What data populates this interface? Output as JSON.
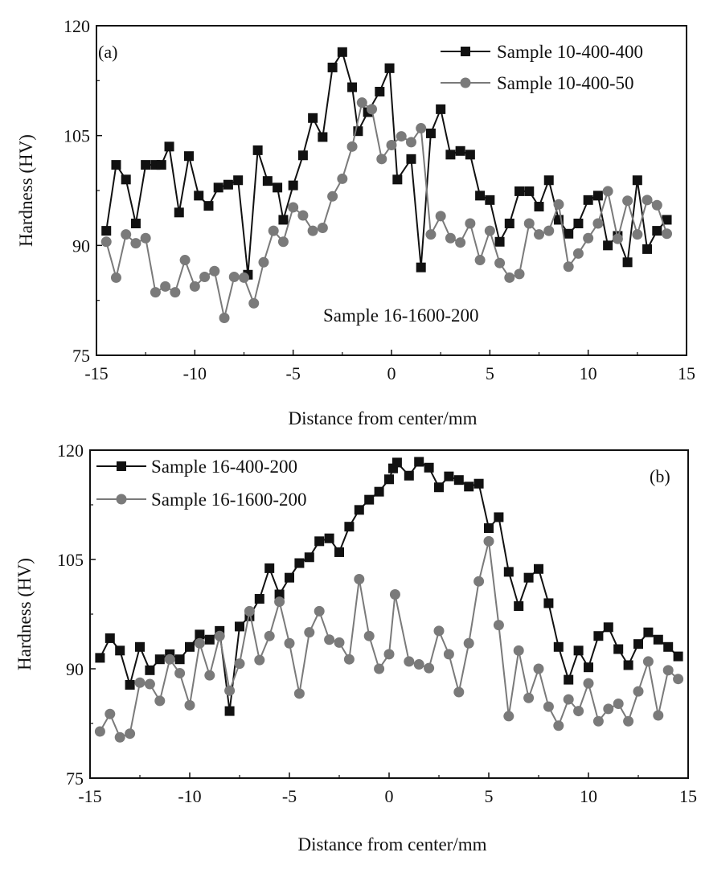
{
  "chart_data": [
    {
      "type": "line",
      "panel_label": "(a)",
      "xlabel": "Distance from center/mm",
      "ylabel": "Hardness (HV)",
      "xlim": [
        -15,
        15
      ],
      "ylim": [
        75,
        120
      ],
      "xticks": [
        -15,
        -10,
        -5,
        0,
        5,
        10,
        15
      ],
      "yticks": [
        75,
        90,
        105,
        120
      ],
      "grid": false,
      "legend_position": "top-right",
      "annotation": "Sample 16-1600-200",
      "series": [
        {
          "name": "Sample 10-400-400",
          "color": "#111111",
          "marker": "square",
          "points": [
            [
              -14.5,
              92
            ],
            [
              -14,
              101
            ],
            [
              -13.5,
              99
            ],
            [
              -13,
              93
            ],
            [
              -12.5,
              101
            ],
            [
              -12,
              101
            ],
            [
              -11.7,
              101
            ],
            [
              -11.3,
              103.5
            ],
            [
              -10.8,
              94.5
            ],
            [
              -10.3,
              102.2
            ],
            [
              -9.8,
              96.8
            ],
            [
              -9.3,
              95.4
            ],
            [
              -8.8,
              97.9
            ],
            [
              -8.3,
              98.3
            ],
            [
              -7.8,
              98.9
            ],
            [
              -7.3,
              86
            ],
            [
              -6.8,
              103
            ],
            [
              -6.3,
              98.8
            ],
            [
              -5.8,
              97.9
            ],
            [
              -5.5,
              93.5
            ],
            [
              -5,
              98.2
            ],
            [
              -4.5,
              102.3
            ],
            [
              -4,
              107.4
            ],
            [
              -3.5,
              104.8
            ],
            [
              -3,
              114.3
            ],
            [
              -2.5,
              116.4
            ],
            [
              -2,
              111.6
            ],
            [
              -1.7,
              105.6
            ],
            [
              -1.2,
              108.2
            ],
            [
              -0.6,
              111
            ],
            [
              -0.1,
              114.2
            ],
            [
              0.3,
              99
            ],
            [
              1,
              101.8
            ],
            [
              1.5,
              87
            ],
            [
              2,
              105.3
            ],
            [
              2.5,
              108.6
            ],
            [
              3,
              102.4
            ],
            [
              3.5,
              102.9
            ],
            [
              4,
              102.4
            ],
            [
              4.5,
              96.8
            ],
            [
              5,
              96.2
            ],
            [
              5.5,
              90.5
            ],
            [
              6,
              93
            ],
            [
              6.5,
              97.4
            ],
            [
              7,
              97.4
            ],
            [
              7.5,
              95.3
            ],
            [
              8,
              98.9
            ],
            [
              8.5,
              93.5
            ],
            [
              9,
              91.6
            ],
            [
              9.5,
              93
            ],
            [
              10,
              96.2
            ],
            [
              10.5,
              96.8
            ],
            [
              11,
              90
            ],
            [
              11.5,
              91.3
            ],
            [
              12,
              87.7
            ],
            [
              12.5,
              98.9
            ],
            [
              13,
              89.5
            ],
            [
              13.5,
              92
            ],
            [
              14,
              93.5
            ]
          ]
        },
        {
          "name": "Sample 10-400-50",
          "color": "#7a7a7a",
          "marker": "circle",
          "points": [
            [
              -14.5,
              90.5
            ],
            [
              -14,
              85.6
            ],
            [
              -13.5,
              91.5
            ],
            [
              -13,
              90.3
            ],
            [
              -12.5,
              91
            ],
            [
              -12,
              83.6
            ],
            [
              -11.5,
              84.4
            ],
            [
              -11,
              83.6
            ],
            [
              -10.5,
              88
            ],
            [
              -10,
              84.4
            ],
            [
              -9.5,
              85.7
            ],
            [
              -9,
              86.5
            ],
            [
              -8.5,
              80.1
            ],
            [
              -8,
              85.7
            ],
            [
              -7.5,
              85.6
            ],
            [
              -7,
              82.1
            ],
            [
              -6.5,
              87.7
            ],
            [
              -6,
              92
            ],
            [
              -5.5,
              90.5
            ],
            [
              -5,
              95.2
            ],
            [
              -4.5,
              94.1
            ],
            [
              -4,
              92
            ],
            [
              -3.5,
              92.4
            ],
            [
              -3,
              96.7
            ],
            [
              -2.5,
              99.1
            ],
            [
              -2,
              103.5
            ],
            [
              -1.5,
              109.5
            ],
            [
              -1,
              108.6
            ],
            [
              -0.5,
              101.8
            ],
            [
              0,
              103.7
            ],
            [
              0.5,
              104.9
            ],
            [
              1,
              104.1
            ],
            [
              1.5,
              106
            ],
            [
              2,
              91.5
            ],
            [
              2.5,
              94
            ],
            [
              3,
              91
            ],
            [
              3.5,
              90.4
            ],
            [
              4,
              93
            ],
            [
              4.5,
              88
            ],
            [
              5,
              92
            ],
            [
              5.5,
              87.6
            ],
            [
              6,
              85.6
            ],
            [
              6.5,
              86.1
            ],
            [
              7,
              93
            ],
            [
              7.5,
              91.5
            ],
            [
              8,
              92
            ],
            [
              8.5,
              95.6
            ],
            [
              9,
              87.1
            ],
            [
              9.5,
              88.9
            ],
            [
              10,
              91
            ],
            [
              10.5,
              93
            ],
            [
              11,
              97.4
            ],
            [
              11.5,
              90.9
            ],
            [
              12,
              96.1
            ],
            [
              12.5,
              91.5
            ],
            [
              13,
              96.2
            ],
            [
              13.5,
              95.5
            ],
            [
              14,
              91.6
            ]
          ]
        }
      ]
    },
    {
      "type": "line",
      "panel_label": "(b)",
      "xlabel": "Distance from center/mm",
      "ylabel": "Hardness (HV)",
      "xlim": [
        -15,
        15
      ],
      "ylim": [
        75,
        120
      ],
      "xticks": [
        -15,
        -10,
        -5,
        0,
        5,
        10,
        15
      ],
      "yticks": [
        75,
        90,
        105,
        120
      ],
      "grid": false,
      "legend_position": "top-left",
      "series": [
        {
          "name": "Sample 16-400-200",
          "color": "#111111",
          "marker": "square",
          "points": [
            [
              -14.5,
              91.5
            ],
            [
              -14,
              94.2
            ],
            [
              -13.5,
              92.5
            ],
            [
              -13,
              87.8
            ],
            [
              -12.5,
              93
            ],
            [
              -12,
              89.8
            ],
            [
              -11.5,
              91.3
            ],
            [
              -11,
              92
            ],
            [
              -10.5,
              91.3
            ],
            [
              -10,
              93
            ],
            [
              -9.5,
              94.7
            ],
            [
              -9,
              94
            ],
            [
              -8.5,
              95.2
            ],
            [
              -8,
              84.2
            ],
            [
              -7.5,
              95.8
            ],
            [
              -7,
              97.2
            ],
            [
              -6.5,
              99.6
            ],
            [
              -6,
              103.8
            ],
            [
              -5.5,
              100.2
            ],
            [
              -5,
              102.5
            ],
            [
              -4.5,
              104.5
            ],
            [
              -4,
              105.3
            ],
            [
              -3.5,
              107.5
            ],
            [
              -3,
              107.9
            ],
            [
              -2.5,
              106
            ],
            [
              -2,
              109.5
            ],
            [
              -1.5,
              111.8
            ],
            [
              -1,
              113.2
            ],
            [
              -0.5,
              114.3
            ],
            [
              0,
              116
            ],
            [
              0.2,
              117.5
            ],
            [
              0.4,
              118.3
            ],
            [
              1,
              116.5
            ],
            [
              1.5,
              118.4
            ],
            [
              2,
              117.6
            ],
            [
              2.5,
              114.9
            ],
            [
              3,
              116.4
            ],
            [
              3.5,
              115.9
            ],
            [
              4,
              115
            ],
            [
              4.5,
              115.4
            ],
            [
              5,
              109.3
            ],
            [
              5.5,
              110.8
            ],
            [
              6,
              103.3
            ],
            [
              6.5,
              98.6
            ],
            [
              7,
              102.5
            ],
            [
              7.5,
              103.7
            ],
            [
              8,
              99
            ],
            [
              8.5,
              93
            ],
            [
              9,
              88.5
            ],
            [
              9.5,
              92.5
            ],
            [
              10,
              90.2
            ],
            [
              10.5,
              94.5
            ],
            [
              11,
              95.7
            ],
            [
              11.5,
              92.7
            ],
            [
              12,
              90.5
            ],
            [
              12.5,
              93.4
            ],
            [
              13,
              95
            ],
            [
              13.5,
              94
            ],
            [
              14,
              93
            ],
            [
              14.5,
              91.7
            ]
          ]
        },
        {
          "name": "Sample 16-1600-200",
          "color": "#7a7a7a",
          "marker": "circle",
          "points": [
            [
              -14.5,
              81.4
            ],
            [
              -14,
              83.8
            ],
            [
              -13.5,
              80.6
            ],
            [
              -13,
              81.1
            ],
            [
              -12.5,
              88.1
            ],
            [
              -12,
              87.9
            ],
            [
              -11.5,
              85.6
            ],
            [
              -11,
              91.3
            ],
            [
              -10.5,
              89.4
            ],
            [
              -10,
              85
            ],
            [
              -9.5,
              93.5
            ],
            [
              -9,
              89.1
            ],
            [
              -8.5,
              94.5
            ],
            [
              -8,
              87
            ],
            [
              -7.5,
              90.7
            ],
            [
              -7,
              97.9
            ],
            [
              -6.5,
              91.2
            ],
            [
              -6,
              94.5
            ],
            [
              -5.5,
              99.2
            ],
            [
              -5,
              93.5
            ],
            [
              -4.5,
              86.6
            ],
            [
              -4,
              95
            ],
            [
              -3.5,
              97.9
            ],
            [
              -3,
              94
            ],
            [
              -2.5,
              93.6
            ],
            [
              -2,
              91.3
            ],
            [
              -1.5,
              102.3
            ],
            [
              -1,
              94.5
            ],
            [
              -0.5,
              90
            ],
            [
              0,
              92
            ],
            [
              0.3,
              100.2
            ],
            [
              1,
              91
            ],
            [
              1.5,
              90.6
            ],
            [
              2,
              90.1
            ],
            [
              2.5,
              95.2
            ],
            [
              3,
              92
            ],
            [
              3.5,
              86.8
            ],
            [
              4,
              93.5
            ],
            [
              4.5,
              102
            ],
            [
              5,
              107.5
            ],
            [
              5.5,
              96
            ],
            [
              6,
              83.5
            ],
            [
              6.5,
              92.5
            ],
            [
              7,
              86
            ],
            [
              7.5,
              90
            ],
            [
              8,
              84.8
            ],
            [
              8.5,
              82.2
            ],
            [
              9,
              85.8
            ],
            [
              9.5,
              84.2
            ],
            [
              10,
              88
            ],
            [
              10.5,
              82.8
            ],
            [
              11,
              84.5
            ],
            [
              11.5,
              85.2
            ],
            [
              12,
              82.8
            ],
            [
              12.5,
              86.9
            ],
            [
              13,
              91
            ],
            [
              13.5,
              83.6
            ],
            [
              14,
              89.8
            ],
            [
              14.5,
              88.6
            ]
          ]
        }
      ]
    }
  ]
}
